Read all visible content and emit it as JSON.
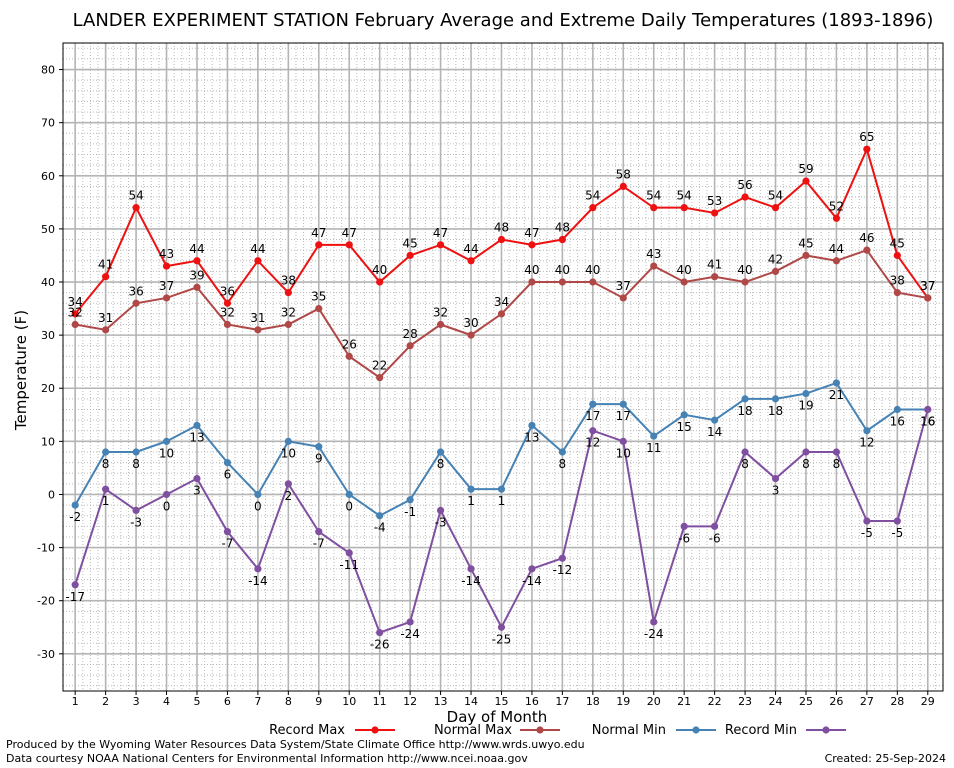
{
  "chart_data": {
    "type": "line",
    "title": "LANDER EXPERIMENT STATION February Average and Extreme Daily Temperatures (1893-1896)",
    "xlabel": "Day of Month",
    "ylabel": "Temperature (F)",
    "x": [
      1,
      2,
      3,
      4,
      5,
      6,
      7,
      8,
      9,
      10,
      11,
      12,
      13,
      14,
      15,
      16,
      17,
      18,
      19,
      20,
      21,
      22,
      23,
      24,
      25,
      26,
      27,
      28,
      29
    ],
    "xlim": [
      0.6,
      29.5
    ],
    "ylim": [
      -37,
      85
    ],
    "yticks": [
      -30,
      -20,
      -10,
      0,
      10,
      20,
      30,
      40,
      50,
      60,
      70,
      80
    ],
    "grid": true,
    "legend_position": "bottom",
    "series": [
      {
        "name": "Record Max",
        "color": "#ee1111",
        "values": [
          34,
          41,
          54,
          43,
          44,
          36,
          44,
          38,
          47,
          47,
          40,
          45,
          47,
          44,
          48,
          47,
          48,
          54,
          58,
          54,
          54,
          53,
          56,
          54,
          59,
          52,
          65,
          45,
          37
        ]
      },
      {
        "name": "Normal Max",
        "color": "#b04848",
        "values": [
          32,
          31,
          36,
          37,
          39,
          32,
          31,
          32,
          35,
          26,
          22,
          28,
          32,
          30,
          34,
          40,
          40,
          40,
          37,
          43,
          40,
          41,
          40,
          42,
          45,
          44,
          46,
          38,
          37
        ]
      },
      {
        "name": "Normal Min",
        "color": "#4682b4",
        "values": [
          -2,
          8,
          8,
          10,
          13,
          6,
          0,
          10,
          9,
          0,
          -4,
          -1,
          8,
          1,
          1,
          13,
          8,
          17,
          17,
          11,
          15,
          14,
          18,
          18,
          19,
          21,
          12,
          16,
          16
        ]
      },
      {
        "name": "Record Min",
        "color": "#8050a0",
        "values": [
          -17,
          1,
          -3,
          0,
          3,
          -7,
          -14,
          2,
          -7,
          -11,
          -26,
          -24,
          -3,
          -14,
          -25,
          -14,
          -12,
          12,
          10,
          -24,
          -6,
          -6,
          8,
          3,
          8,
          8,
          -5,
          -5,
          16
        ]
      }
    ]
  },
  "footer": {
    "producer": "Produced by the Wyoming Water Resources Data System/State Climate Office http://www.wrds.uwyo.edu",
    "source": "Data courtesy NOAA National Centers for Environmental Information http://www.ncei.noaa.gov",
    "created": "Created: 25-Sep-2024"
  }
}
